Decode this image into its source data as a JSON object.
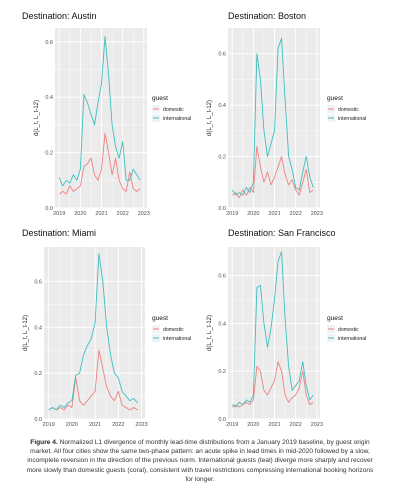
{
  "figure": {
    "legend_title": "guest",
    "ylabel": "d(L_t, L_t-12)",
    "x_ticks": [
      "2019",
      "2020",
      "2021",
      "2022",
      "2023"
    ]
  },
  "colors": {
    "domestic": "#f08080",
    "international": "#3fbfbf",
    "panel_bg": "#ebebeb",
    "grid": "#ffffff"
  },
  "caption": {
    "label": "Figure 4.",
    "text": "Normalized L1 divergence of monthly lead-time distributions from a January 2019 baseline, by guest origin market. All four cities show the same two-phase pattern: an acute spike in lead times in mid-2020 followed by a slow, incomplete reversion in the direction of the previous norm. International guests (teal) diverge more sharply and recover more slowly than domestic guests (coral), consistent with travel restrictions compressing international booking horizons for longer."
  },
  "chart_data": [
    {
      "type": "line",
      "title": "Destination: Austin",
      "x": [
        "2019-01",
        "2019-03",
        "2019-05",
        "2019-07",
        "2019-09",
        "2019-11",
        "2020-01",
        "2020-03",
        "2020-05",
        "2020-07",
        "2020-09",
        "2020-11",
        "2021-01",
        "2021-03",
        "2021-05",
        "2021-07",
        "2021-09",
        "2021-11",
        "2022-01",
        "2022-03",
        "2022-05",
        "2022-07",
        "2022-09",
        "2022-11"
      ],
      "ylim": [
        0,
        0.65
      ],
      "yticks": [
        0.0,
        0.2,
        0.4,
        0.6
      ],
      "series": [
        {
          "name": "domestic",
          "values": [
            0.05,
            0.06,
            0.05,
            0.08,
            0.06,
            0.07,
            0.08,
            0.15,
            0.16,
            0.18,
            0.12,
            0.1,
            0.14,
            0.27,
            0.2,
            0.12,
            0.18,
            0.1,
            0.07,
            0.06,
            0.13,
            0.07,
            0.06,
            0.07
          ]
        },
        {
          "name": "international",
          "values": [
            0.11,
            0.08,
            0.1,
            0.09,
            0.12,
            0.1,
            0.14,
            0.41,
            0.38,
            0.34,
            0.3,
            0.38,
            0.45,
            0.62,
            0.48,
            0.3,
            0.22,
            0.18,
            0.24,
            0.1,
            0.1,
            0.14,
            0.12,
            0.1
          ]
        }
      ]
    },
    {
      "type": "line",
      "title": "Destination: Boston",
      "x": [
        "2019-01",
        "2019-03",
        "2019-05",
        "2019-07",
        "2019-09",
        "2019-11",
        "2020-01",
        "2020-03",
        "2020-05",
        "2020-07",
        "2020-09",
        "2020-11",
        "2021-01",
        "2021-03",
        "2021-05",
        "2021-07",
        "2021-09",
        "2021-11",
        "2022-01",
        "2022-03",
        "2022-05",
        "2022-07",
        "2022-09",
        "2022-11"
      ],
      "ylim": [
        0,
        0.7
      ],
      "yticks": [
        0.0,
        0.2,
        0.4,
        0.6
      ],
      "series": [
        {
          "name": "domestic",
          "values": [
            0.05,
            0.06,
            0.04,
            0.07,
            0.05,
            0.08,
            0.06,
            0.24,
            0.16,
            0.1,
            0.14,
            0.09,
            0.12,
            0.16,
            0.2,
            0.13,
            0.09,
            0.11,
            0.07,
            0.05,
            0.1,
            0.15,
            0.06,
            0.07
          ]
        },
        {
          "name": "international",
          "values": [
            0.07,
            0.05,
            0.06,
            0.05,
            0.08,
            0.06,
            0.1,
            0.6,
            0.5,
            0.3,
            0.2,
            0.25,
            0.3,
            0.62,
            0.66,
            0.42,
            0.2,
            0.15,
            0.08,
            0.07,
            0.14,
            0.2,
            0.12,
            0.08
          ]
        }
      ]
    },
    {
      "type": "line",
      "title": "Destination: Miami",
      "x": [
        "2019-01",
        "2019-03",
        "2019-05",
        "2019-07",
        "2019-09",
        "2019-11",
        "2020-01",
        "2020-03",
        "2020-05",
        "2020-07",
        "2020-09",
        "2020-11",
        "2021-01",
        "2021-03",
        "2021-05",
        "2021-07",
        "2021-09",
        "2021-11",
        "2022-01",
        "2022-03",
        "2022-05",
        "2022-07",
        "2022-09",
        "2022-11"
      ],
      "ylim": [
        0,
        0.75
      ],
      "yticks": [
        0.0,
        0.2,
        0.4,
        0.6
      ],
      "series": [
        {
          "name": "domestic",
          "values": [
            0.04,
            0.05,
            0.04,
            0.05,
            0.04,
            0.06,
            0.05,
            0.18,
            0.08,
            0.06,
            0.08,
            0.1,
            0.12,
            0.3,
            0.22,
            0.14,
            0.1,
            0.08,
            0.12,
            0.06,
            0.05,
            0.04,
            0.05,
            0.04
          ]
        },
        {
          "name": "international",
          "values": [
            0.04,
            0.05,
            0.04,
            0.06,
            0.05,
            0.07,
            0.08,
            0.19,
            0.2,
            0.28,
            0.32,
            0.35,
            0.42,
            0.72,
            0.6,
            0.4,
            0.28,
            0.2,
            0.18,
            0.12,
            0.1,
            0.08,
            0.09,
            0.07
          ]
        }
      ]
    },
    {
      "type": "line",
      "title": "Destination: San Francisco",
      "x": [
        "2019-01",
        "2019-03",
        "2019-05",
        "2019-07",
        "2019-09",
        "2019-11",
        "2020-01",
        "2020-03",
        "2020-05",
        "2020-07",
        "2020-09",
        "2020-11",
        "2021-01",
        "2021-03",
        "2021-05",
        "2021-07",
        "2021-09",
        "2021-11",
        "2022-01",
        "2022-03",
        "2022-05",
        "2022-07",
        "2022-09",
        "2022-11"
      ],
      "ylim": [
        0,
        0.72
      ],
      "yticks": [
        0.0,
        0.2,
        0.4,
        0.6
      ],
      "series": [
        {
          "name": "domestic",
          "values": [
            0.05,
            0.06,
            0.05,
            0.06,
            0.07,
            0.06,
            0.08,
            0.22,
            0.2,
            0.12,
            0.1,
            0.13,
            0.16,
            0.24,
            0.2,
            0.1,
            0.07,
            0.09,
            0.1,
            0.13,
            0.2,
            0.1,
            0.06,
            0.07
          ]
        },
        {
          "name": "international",
          "values": [
            0.06,
            0.05,
            0.07,
            0.06,
            0.08,
            0.07,
            0.1,
            0.55,
            0.56,
            0.4,
            0.3,
            0.38,
            0.5,
            0.66,
            0.7,
            0.42,
            0.22,
            0.12,
            0.14,
            0.16,
            0.24,
            0.14,
            0.08,
            0.1
          ]
        }
      ]
    }
  ]
}
